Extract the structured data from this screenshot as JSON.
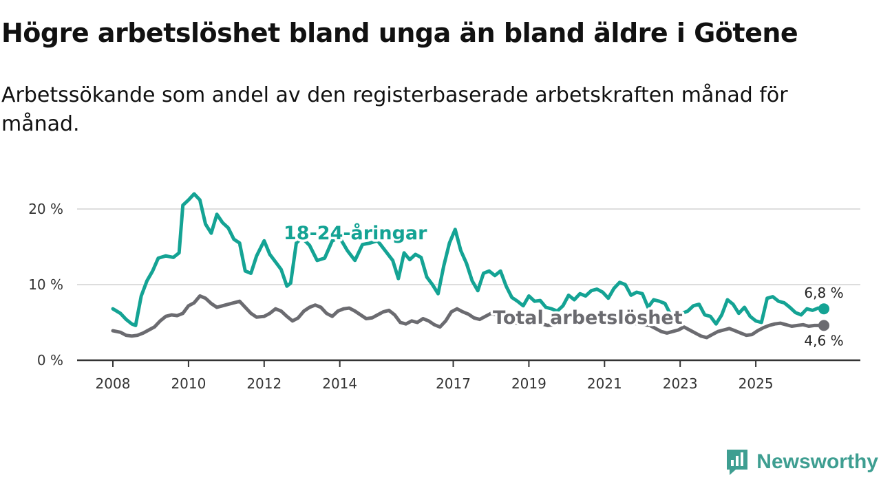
{
  "title": "Högre arbetslöshet bland unga än bland äldre i Götene",
  "subtitle": "Arbetssökande som andel av den registerbaserade arbetskraften månad för månad.",
  "brand": "Newsworthy",
  "colors": {
    "youth": "#14a394",
    "total": "#6b6b70",
    "grid": "#dddddd",
    "axis": "#333333"
  },
  "chart_data": {
    "type": "line",
    "title": "Högre arbetslöshet bland unga än bland äldre i Götene",
    "xlabel": "",
    "ylabel": "",
    "xlim": [
      2008.0,
      2027.3
    ],
    "ylim": [
      0,
      20
    ],
    "y_ticks": [
      {
        "value": 0,
        "label": "0 %"
      },
      {
        "value": 10,
        "label": "10 %"
      },
      {
        "value": 20,
        "label": "20 %"
      }
    ],
    "x_ticks": [
      {
        "value": 2008,
        "label": "2008"
      },
      {
        "value": 2010,
        "label": "2010"
      },
      {
        "value": 2012,
        "label": "2012"
      },
      {
        "value": 2014,
        "label": "2014"
      },
      {
        "value": 2017,
        "label": "2017"
      },
      {
        "value": 2019,
        "label": "2019"
      },
      {
        "value": 2021,
        "label": "2021"
      },
      {
        "value": 2023,
        "label": "2023"
      },
      {
        "value": 2025,
        "label": "2025"
      }
    ],
    "series": [
      {
        "name": "18-24-åringar",
        "label": "18-24-åringar",
        "color": "#14a394",
        "end_label": "6,8 %",
        "points": [
          [
            2008.0,
            6.8
          ],
          [
            2008.2,
            6.2
          ],
          [
            2008.35,
            5.4
          ],
          [
            2008.5,
            4.8
          ],
          [
            2008.6,
            4.6
          ],
          [
            2008.75,
            8.5
          ],
          [
            2008.9,
            10.5
          ],
          [
            2009.05,
            11.8
          ],
          [
            2009.2,
            13.5
          ],
          [
            2009.4,
            13.8
          ],
          [
            2009.6,
            13.6
          ],
          [
            2009.75,
            14.2
          ],
          [
            2009.85,
            20.5
          ],
          [
            2010.0,
            21.2
          ],
          [
            2010.15,
            22.0
          ],
          [
            2010.3,
            21.2
          ],
          [
            2010.45,
            18.0
          ],
          [
            2010.6,
            16.8
          ],
          [
            2010.75,
            19.3
          ],
          [
            2010.9,
            18.2
          ],
          [
            2011.05,
            17.5
          ],
          [
            2011.2,
            16.0
          ],
          [
            2011.35,
            15.5
          ],
          [
            2011.5,
            11.8
          ],
          [
            2011.65,
            11.5
          ],
          [
            2011.8,
            13.8
          ],
          [
            2012.0,
            15.8
          ],
          [
            2012.15,
            14.0
          ],
          [
            2012.3,
            13.0
          ],
          [
            2012.45,
            12.0
          ],
          [
            2012.6,
            9.8
          ],
          [
            2012.7,
            10.2
          ],
          [
            2012.85,
            15.5
          ],
          [
            2013.0,
            16.2
          ],
          [
            2013.2,
            15.2
          ],
          [
            2013.4,
            13.2
          ],
          [
            2013.6,
            13.5
          ],
          [
            2013.8,
            15.8
          ],
          [
            2014.0,
            16.2
          ],
          [
            2014.2,
            14.5
          ],
          [
            2014.4,
            13.2
          ],
          [
            2014.6,
            15.3
          ],
          [
            2014.8,
            15.5
          ],
          [
            2015.0,
            15.8
          ],
          [
            2015.2,
            14.5
          ],
          [
            2015.4,
            13.2
          ],
          [
            2015.55,
            10.8
          ],
          [
            2015.7,
            14.2
          ],
          [
            2015.85,
            13.3
          ],
          [
            2016.0,
            14.0
          ],
          [
            2016.15,
            13.6
          ],
          [
            2016.3,
            11.0
          ],
          [
            2016.45,
            10.0
          ],
          [
            2016.6,
            8.8
          ],
          [
            2016.75,
            12.5
          ],
          [
            2016.9,
            15.5
          ],
          [
            2017.05,
            17.3
          ],
          [
            2017.2,
            14.5
          ],
          [
            2017.35,
            12.8
          ],
          [
            2017.5,
            10.5
          ],
          [
            2017.65,
            9.2
          ],
          [
            2017.8,
            11.5
          ],
          [
            2017.95,
            11.8
          ],
          [
            2018.1,
            11.2
          ],
          [
            2018.25,
            11.8
          ],
          [
            2018.4,
            9.8
          ],
          [
            2018.55,
            8.3
          ],
          [
            2018.7,
            7.8
          ],
          [
            2018.85,
            7.2
          ],
          [
            2019.0,
            8.5
          ],
          [
            2019.15,
            7.8
          ],
          [
            2019.3,
            7.9
          ],
          [
            2019.45,
            7.0
          ],
          [
            2019.6,
            6.8
          ],
          [
            2019.75,
            6.5
          ],
          [
            2019.9,
            7.2
          ],
          [
            2020.05,
            8.6
          ],
          [
            2020.2,
            8.0
          ],
          [
            2020.35,
            8.8
          ],
          [
            2020.5,
            8.5
          ],
          [
            2020.65,
            9.2
          ],
          [
            2020.8,
            9.4
          ],
          [
            2020.95,
            9.0
          ],
          [
            2021.1,
            8.2
          ],
          [
            2021.25,
            9.5
          ],
          [
            2021.4,
            10.3
          ],
          [
            2021.55,
            10.0
          ],
          [
            2021.7,
            8.6
          ],
          [
            2021.85,
            9.0
          ],
          [
            2022.0,
            8.8
          ],
          [
            2022.15,
            7.0
          ],
          [
            2022.3,
            8.0
          ],
          [
            2022.45,
            7.8
          ],
          [
            2022.6,
            7.5
          ],
          [
            2022.75,
            6.0
          ],
          [
            2022.9,
            4.9
          ],
          [
            2023.05,
            6.2
          ],
          [
            2023.2,
            6.5
          ],
          [
            2023.35,
            7.2
          ],
          [
            2023.5,
            7.4
          ],
          [
            2023.65,
            6.0
          ],
          [
            2023.8,
            5.8
          ],
          [
            2023.95,
            4.8
          ],
          [
            2024.1,
            6.0
          ],
          [
            2024.25,
            8.0
          ],
          [
            2024.4,
            7.4
          ],
          [
            2024.55,
            6.2
          ],
          [
            2024.7,
            7.0
          ],
          [
            2024.85,
            5.8
          ],
          [
            2025.0,
            5.2
          ],
          [
            2025.15,
            5.0
          ],
          [
            2025.3,
            8.2
          ],
          [
            2025.45,
            8.4
          ],
          [
            2025.6,
            7.8
          ],
          [
            2025.75,
            7.6
          ],
          [
            2025.9,
            7.0
          ],
          [
            2026.05,
            6.3
          ],
          [
            2026.2,
            6.0
          ],
          [
            2026.35,
            6.8
          ],
          [
            2026.5,
            6.6
          ],
          [
            2026.65,
            6.9
          ],
          [
            2026.8,
            6.8
          ]
        ]
      },
      {
        "name": "Total arbetslöshet",
        "label": "Total arbetslöshet",
        "color": "#6b6b70",
        "end_label": "4,6 %",
        "points": [
          [
            2008.0,
            3.9
          ],
          [
            2008.2,
            3.7
          ],
          [
            2008.35,
            3.3
          ],
          [
            2008.5,
            3.2
          ],
          [
            2008.65,
            3.3
          ],
          [
            2008.8,
            3.6
          ],
          [
            2008.95,
            4.0
          ],
          [
            2009.1,
            4.4
          ],
          [
            2009.25,
            5.2
          ],
          [
            2009.4,
            5.8
          ],
          [
            2009.55,
            6.0
          ],
          [
            2009.7,
            5.9
          ],
          [
            2009.85,
            6.2
          ],
          [
            2010.0,
            7.2
          ],
          [
            2010.15,
            7.6
          ],
          [
            2010.3,
            8.5
          ],
          [
            2010.45,
            8.2
          ],
          [
            2010.6,
            7.5
          ],
          [
            2010.75,
            7.0
          ],
          [
            2010.9,
            7.2
          ],
          [
            2011.05,
            7.4
          ],
          [
            2011.2,
            7.6
          ],
          [
            2011.35,
            7.8
          ],
          [
            2011.5,
            7.0
          ],
          [
            2011.65,
            6.2
          ],
          [
            2011.8,
            5.7
          ],
          [
            2012.0,
            5.8
          ],
          [
            2012.15,
            6.2
          ],
          [
            2012.3,
            6.8
          ],
          [
            2012.45,
            6.5
          ],
          [
            2012.6,
            5.8
          ],
          [
            2012.75,
            5.2
          ],
          [
            2012.9,
            5.6
          ],
          [
            2013.05,
            6.5
          ],
          [
            2013.2,
            7.0
          ],
          [
            2013.35,
            7.3
          ],
          [
            2013.5,
            7.0
          ],
          [
            2013.65,
            6.2
          ],
          [
            2013.8,
            5.8
          ],
          [
            2013.95,
            6.5
          ],
          [
            2014.1,
            6.8
          ],
          [
            2014.25,
            6.9
          ],
          [
            2014.4,
            6.5
          ],
          [
            2014.55,
            6.0
          ],
          [
            2014.7,
            5.5
          ],
          [
            2014.85,
            5.6
          ],
          [
            2015.0,
            6.0
          ],
          [
            2015.15,
            6.4
          ],
          [
            2015.3,
            6.6
          ],
          [
            2015.45,
            6.0
          ],
          [
            2015.6,
            5.0
          ],
          [
            2015.75,
            4.8
          ],
          [
            2015.9,
            5.2
          ],
          [
            2016.05,
            5.0
          ],
          [
            2016.2,
            5.5
          ],
          [
            2016.35,
            5.2
          ],
          [
            2016.5,
            4.7
          ],
          [
            2016.65,
            4.4
          ],
          [
            2016.8,
            5.2
          ],
          [
            2016.95,
            6.4
          ],
          [
            2017.1,
            6.8
          ],
          [
            2017.25,
            6.4
          ],
          [
            2017.4,
            6.1
          ],
          [
            2017.55,
            5.6
          ],
          [
            2017.7,
            5.4
          ],
          [
            2017.85,
            5.8
          ],
          [
            2018.0,
            6.2
          ],
          [
            2018.15,
            6.0
          ],
          [
            2018.3,
            5.6
          ],
          [
            2018.45,
            5.1
          ],
          [
            2018.6,
            5.0
          ],
          [
            2018.75,
            4.8
          ],
          [
            2018.9,
            5.0
          ],
          [
            2019.05,
            5.3
          ],
          [
            2019.2,
            5.0
          ],
          [
            2019.35,
            4.8
          ],
          [
            2019.5,
            4.6
          ],
          [
            2019.65,
            4.7
          ],
          [
            2019.8,
            5.0
          ],
          [
            2019.95,
            5.3
          ],
          [
            2020.1,
            5.8
          ],
          [
            2020.25,
            5.6
          ],
          [
            2020.4,
            5.4
          ],
          [
            2020.55,
            5.3
          ],
          [
            2020.7,
            5.4
          ],
          [
            2020.85,
            5.5
          ],
          [
            2021.0,
            5.6
          ],
          [
            2021.15,
            5.5
          ],
          [
            2021.3,
            5.3
          ],
          [
            2021.45,
            5.1
          ],
          [
            2021.6,
            5.0
          ],
          [
            2021.75,
            4.9
          ],
          [
            2021.9,
            4.8
          ],
          [
            2022.05,
            4.7
          ],
          [
            2022.2,
            4.6
          ],
          [
            2022.35,
            4.2
          ],
          [
            2022.5,
            3.8
          ],
          [
            2022.65,
            3.6
          ],
          [
            2022.8,
            3.8
          ],
          [
            2022.95,
            4.0
          ],
          [
            2023.1,
            4.4
          ],
          [
            2023.25,
            4.0
          ],
          [
            2023.4,
            3.6
          ],
          [
            2023.55,
            3.2
          ],
          [
            2023.7,
            3.0
          ],
          [
            2023.85,
            3.4
          ],
          [
            2024.0,
            3.8
          ],
          [
            2024.15,
            4.0
          ],
          [
            2024.3,
            4.2
          ],
          [
            2024.45,
            3.9
          ],
          [
            2024.6,
            3.6
          ],
          [
            2024.75,
            3.3
          ],
          [
            2024.9,
            3.4
          ],
          [
            2025.05,
            3.9
          ],
          [
            2025.2,
            4.3
          ],
          [
            2025.35,
            4.6
          ],
          [
            2025.5,
            4.8
          ],
          [
            2025.65,
            4.9
          ],
          [
            2025.8,
            4.7
          ],
          [
            2025.95,
            4.5
          ],
          [
            2026.1,
            4.6
          ],
          [
            2026.25,
            4.7
          ],
          [
            2026.4,
            4.5
          ],
          [
            2026.55,
            4.6
          ],
          [
            2026.8,
            4.6
          ]
        ]
      }
    ]
  }
}
